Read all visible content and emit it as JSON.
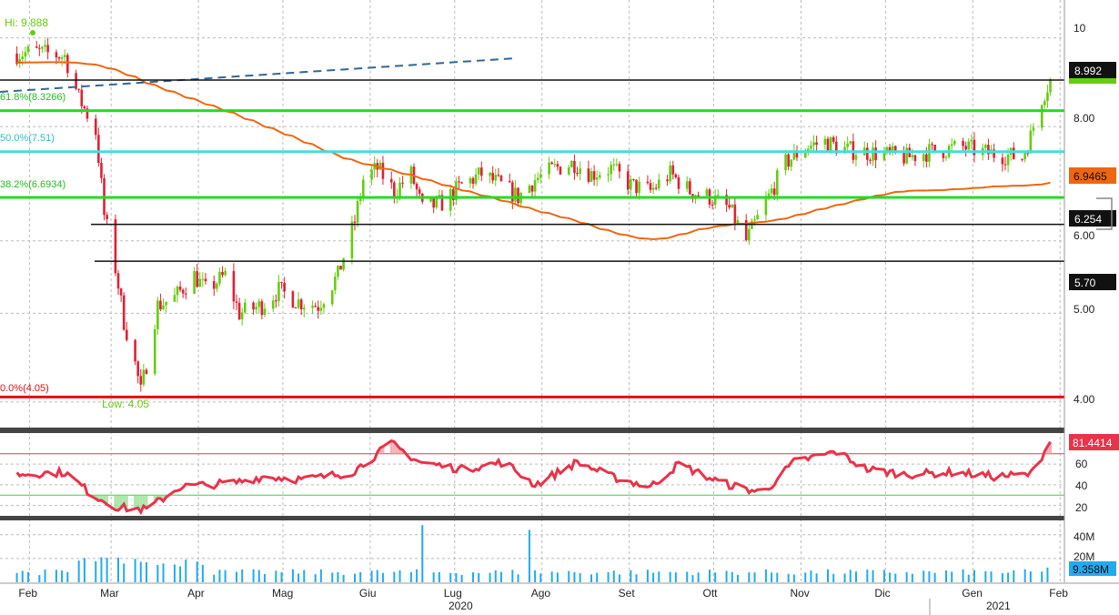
{
  "chart_data": [
    {
      "panel": "price",
      "type": "candlestick",
      "x_axis": {
        "months": [
          "Feb",
          "Mar",
          "Apr",
          "Mag",
          "Giu",
          "Lug",
          "Ago",
          "Set",
          "Ott",
          "Nov",
          "Dic",
          "Gen",
          "Feb"
        ],
        "year_labels": [
          "2020",
          "2021"
        ]
      },
      "y_axis": {
        "scale": "log",
        "ticks": [
          4.0,
          5.0,
          6.0,
          8.0,
          10
        ],
        "tick_labels": [
          "4.00",
          "5.00",
          "6.00",
          "8.00",
          "10"
        ],
        "range": [
          3.75,
          11.0
        ]
      },
      "annotations": {
        "hi_label": "Hi: 9.888",
        "hi_value": 9.888,
        "low_label": "Low: 4.05",
        "low_value": 4.05
      },
      "fib_levels": [
        {
          "label": "61.8%(8.3266)",
          "value": 8.3266,
          "color": "#22dd22"
        },
        {
          "label": "50.0%(7.51)",
          "value": 7.51,
          "color": "#44dddd"
        },
        {
          "label": "38.2%(6.6934)",
          "value": 6.6934,
          "color": "#22dd22"
        },
        {
          "label": "0.0%(4.05)",
          "value": 4.05,
          "color": "#dd1111"
        }
      ],
      "horizontal_lines": [
        {
          "label": "8.992",
          "value": 8.992
        },
        {
          "label": "6.254",
          "value": 6.254
        },
        {
          "label": "5.70",
          "value": 5.7
        }
      ],
      "moving_average": {
        "last_label": "6.9465",
        "last_value": 6.9465,
        "color": "#ee6611"
      },
      "close_path": [
        [
          "2020-02-01",
          9.6
        ],
        [
          "2020-02-10",
          9.65
        ],
        [
          "2020-02-20",
          9.55
        ],
        [
          "2020-02-25",
          8.6
        ],
        [
          "2020-03-02",
          7.9
        ],
        [
          "2020-03-05",
          6.4
        ],
        [
          "2020-03-09",
          5.6
        ],
        [
          "2020-03-12",
          4.9
        ],
        [
          "2020-03-16",
          4.4
        ],
        [
          "2020-03-18",
          4.1
        ],
        [
          "2020-03-20",
          4.4
        ],
        [
          "2020-03-24",
          5.1
        ],
        [
          "2020-03-30",
          5.2
        ],
        [
          "2020-04-06",
          5.5
        ],
        [
          "2020-04-10",
          5.3
        ],
        [
          "2020-04-17",
          5.5
        ],
        [
          "2020-04-22",
          5.0
        ],
        [
          "2020-04-30",
          5.1
        ],
        [
          "2020-05-06",
          5.3
        ],
        [
          "2020-05-13",
          5.15
        ],
        [
          "2020-05-20",
          5.1
        ],
        [
          "2020-05-27",
          5.5
        ],
        [
          "2020-06-02",
          6.3
        ],
        [
          "2020-06-05",
          7.0
        ],
        [
          "2020-06-10",
          7.2
        ],
        [
          "2020-06-16",
          6.8
        ],
        [
          "2020-06-22",
          7.1
        ],
        [
          "2020-06-26",
          6.5
        ],
        [
          "2020-07-03",
          6.6
        ],
        [
          "2020-07-10",
          6.9
        ],
        [
          "2020-07-17",
          7.1
        ],
        [
          "2020-07-24",
          6.9
        ],
        [
          "2020-07-30",
          6.7
        ],
        [
          "2020-08-05",
          7.0
        ],
        [
          "2020-08-12",
          7.2
        ],
        [
          "2020-08-19",
          7.3
        ],
        [
          "2020-08-25",
          7.1
        ],
        [
          "2020-09-01",
          7.2
        ],
        [
          "2020-09-08",
          6.9
        ],
        [
          "2020-09-15",
          6.8
        ],
        [
          "2020-09-22",
          7.1
        ],
        [
          "2020-09-29",
          6.8
        ],
        [
          "2020-10-06",
          6.7
        ],
        [
          "2020-10-13",
          6.5
        ],
        [
          "2020-10-19",
          6.0
        ],
        [
          "2020-10-26",
          6.6
        ],
        [
          "2020-11-02",
          7.3
        ],
        [
          "2020-11-09",
          7.6
        ],
        [
          "2020-11-16",
          7.7
        ],
        [
          "2020-11-23",
          7.55
        ],
        [
          "2020-12-01",
          7.5
        ],
        [
          "2020-12-08",
          7.45
        ],
        [
          "2020-12-15",
          7.4
        ],
        [
          "2020-12-22",
          7.5
        ],
        [
          "2021-01-04",
          7.6
        ],
        [
          "2021-01-11",
          7.5
        ],
        [
          "2021-01-18",
          7.45
        ],
        [
          "2021-01-25",
          7.4
        ],
        [
          "2021-01-28",
          7.8
        ],
        [
          "2021-02-01",
          8.6
        ],
        [
          "2021-02-04",
          8.99
        ]
      ]
    },
    {
      "panel": "rsi",
      "type": "line",
      "y_axis": {
        "ticks": [
          20,
          40,
          60
        ],
        "tick_labels": [
          "20",
          "40",
          "60"
        ],
        "range": [
          10,
          90
        ]
      },
      "overbought": 70,
      "oversold": 30,
      "last_label": "81.4414",
      "last_value": 81.4414,
      "series": [
        [
          "2020-02-01",
          50
        ],
        [
          "2020-02-20",
          52
        ],
        [
          "2020-03-01",
          30
        ],
        [
          "2020-03-10",
          18
        ],
        [
          "2020-03-20",
          16
        ],
        [
          "2020-04-01",
          38
        ],
        [
          "2020-04-20",
          42
        ],
        [
          "2020-05-01",
          48
        ],
        [
          "2020-05-15",
          45
        ],
        [
          "2020-06-01",
          52
        ],
        [
          "2020-06-15",
          80
        ],
        [
          "2020-06-25",
          62
        ],
        [
          "2020-07-10",
          55
        ],
        [
          "2020-07-25",
          62
        ],
        [
          "2020-08-05",
          40
        ],
        [
          "2020-08-20",
          62
        ],
        [
          "2020-09-01",
          48
        ],
        [
          "2020-09-15",
          38
        ],
        [
          "2020-09-25",
          60
        ],
        [
          "2020-10-10",
          42
        ],
        [
          "2020-10-25",
          32
        ],
        [
          "2020-11-05",
          62
        ],
        [
          "2020-11-20",
          72
        ],
        [
          "2020-12-01",
          55
        ],
        [
          "2020-12-15",
          50
        ],
        [
          "2021-01-01",
          52
        ],
        [
          "2021-01-15",
          48
        ],
        [
          "2021-01-28",
          50
        ],
        [
          "2021-02-04",
          81.44
        ]
      ]
    },
    {
      "panel": "volume",
      "type": "bar",
      "y_axis": {
        "ticks": [
          20,
          40
        ],
        "tick_labels": [
          "20M",
          "40M"
        ],
        "range": [
          0,
          52
        ]
      },
      "last_label": "9.358M",
      "last_value": 9.358,
      "spikes": [
        [
          "2020-06-26",
          48
        ],
        [
          "2020-08-03",
          44
        ]
      ]
    }
  ],
  "colors": {
    "up": "#66cc11",
    "down": "#dd2233",
    "ma": "#ee6611",
    "rsi": "#e8334a",
    "volume": "#22aaee",
    "fib_green": "#22dd22",
    "fib_cyan": "#44dddd",
    "fib_red": "#dd1111"
  }
}
